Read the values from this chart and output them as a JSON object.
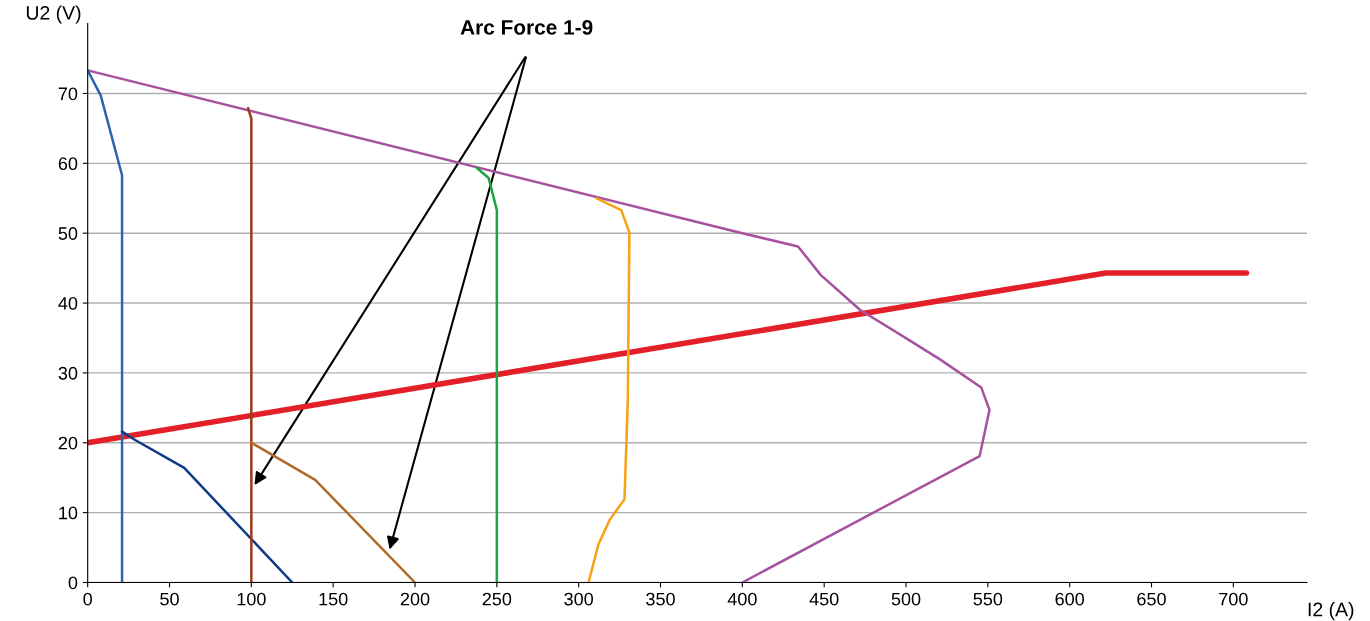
{
  "chart_data": {
    "type": "line",
    "xlabel": "I2 (A)",
    "ylabel": "U2 (V)",
    "xlim": [
      0,
      745
    ],
    "ylim": [
      0,
      80
    ],
    "xticks": [
      0,
      50,
      100,
      150,
      200,
      250,
      300,
      350,
      400,
      450,
      500,
      550,
      600,
      650,
      700
    ],
    "yticks": [
      0,
      10,
      20,
      30,
      40,
      50,
      60,
      70
    ],
    "grid": "y",
    "marker": "none",
    "line_style": "solid",
    "series": [
      {
        "color": "#e3202a",
        "x": [
          0,
          622,
          708
        ],
        "values": [
          20,
          44.3,
          44.3
        ]
      },
      {
        "color": "#a652a0",
        "x": [
          0,
          400,
          434,
          448,
          472,
          497,
          521,
          546,
          551,
          545,
          400
        ],
        "values": [
          73.3,
          50,
          48.1,
          44,
          39,
          35.4,
          31.9,
          27.9,
          24.7,
          18.1,
          0
        ]
      },
      {
        "color": "#2e63b3",
        "x": [
          0,
          8,
          21,
          21
        ],
        "values": [
          73.3,
          69.7,
          58.3,
          0
        ]
      },
      {
        "color": "#0e3b86",
        "x": [
          21,
          29,
          59,
          125
        ],
        "values": [
          21.6,
          20.4,
          16.4,
          0
        ]
      },
      {
        "color": "#9e3a1a",
        "x": [
          98,
          100,
          100
        ],
        "values": [
          67.9,
          66.4,
          0
        ]
      },
      {
        "color": "#b06a2a",
        "x": [
          100,
          139,
          200
        ],
        "values": [
          20,
          14.7,
          0
        ]
      },
      {
        "color": "#1aa542",
        "x": [
          238,
          245,
          250,
          250
        ],
        "values": [
          59.3,
          57.9,
          53.3,
          0
        ]
      },
      {
        "color": "#f5a214",
        "x": [
          311,
          326,
          331,
          330,
          328,
          319,
          312,
          306
        ],
        "values": [
          55,
          53.3,
          50.1,
          26,
          11.9,
          9,
          5.4,
          0
        ]
      }
    ],
    "annotations": [
      "Arc Force 1-9"
    ]
  }
}
